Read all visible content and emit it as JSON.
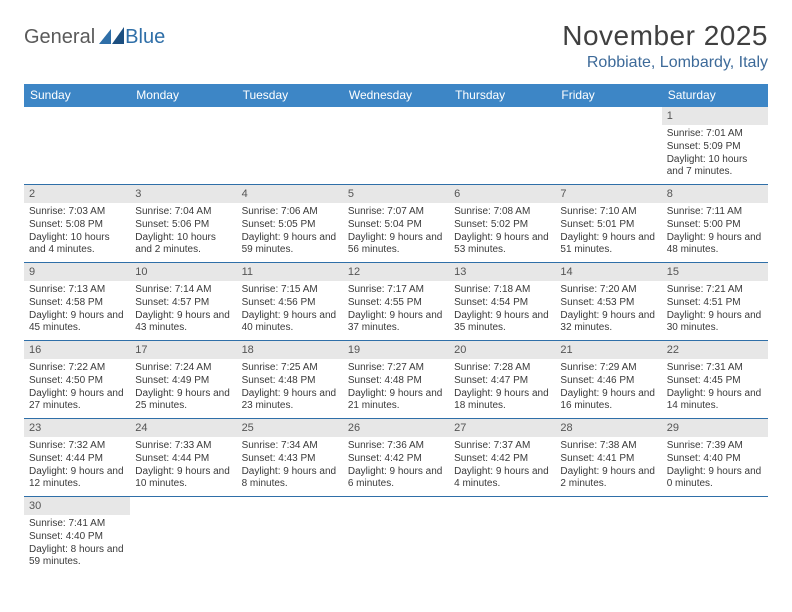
{
  "logo": {
    "part1": "General",
    "part2": "Blue"
  },
  "title": "November 2025",
  "location": "Robbiate, Lombardy, Italy",
  "colors": {
    "header_bg": "#3d86c6",
    "header_text": "#ffffff",
    "accent": "#2f6fa8",
    "daynum_bg": "#e7e7e7",
    "body_text": "#3a3a3a",
    "title_text": "#404040",
    "location_text": "#3d6a99"
  },
  "day_headers": [
    "Sunday",
    "Monday",
    "Tuesday",
    "Wednesday",
    "Thursday",
    "Friday",
    "Saturday"
  ],
  "weeks": [
    [
      {
        "empty": true
      },
      {
        "empty": true
      },
      {
        "empty": true
      },
      {
        "empty": true
      },
      {
        "empty": true
      },
      {
        "empty": true
      },
      {
        "day": "1",
        "sunrise": "7:01 AM",
        "sunset": "5:09 PM",
        "daylight": "10 hours and 7 minutes."
      }
    ],
    [
      {
        "day": "2",
        "sunrise": "7:03 AM",
        "sunset": "5:08 PM",
        "daylight": "10 hours and 4 minutes."
      },
      {
        "day": "3",
        "sunrise": "7:04 AM",
        "sunset": "5:06 PM",
        "daylight": "10 hours and 2 minutes."
      },
      {
        "day": "4",
        "sunrise": "7:06 AM",
        "sunset": "5:05 PM",
        "daylight": "9 hours and 59 minutes."
      },
      {
        "day": "5",
        "sunrise": "7:07 AM",
        "sunset": "5:04 PM",
        "daylight": "9 hours and 56 minutes."
      },
      {
        "day": "6",
        "sunrise": "7:08 AM",
        "sunset": "5:02 PM",
        "daylight": "9 hours and 53 minutes."
      },
      {
        "day": "7",
        "sunrise": "7:10 AM",
        "sunset": "5:01 PM",
        "daylight": "9 hours and 51 minutes."
      },
      {
        "day": "8",
        "sunrise": "7:11 AM",
        "sunset": "5:00 PM",
        "daylight": "9 hours and 48 minutes."
      }
    ],
    [
      {
        "day": "9",
        "sunrise": "7:13 AM",
        "sunset": "4:58 PM",
        "daylight": "9 hours and 45 minutes."
      },
      {
        "day": "10",
        "sunrise": "7:14 AM",
        "sunset": "4:57 PM",
        "daylight": "9 hours and 43 minutes."
      },
      {
        "day": "11",
        "sunrise": "7:15 AM",
        "sunset": "4:56 PM",
        "daylight": "9 hours and 40 minutes."
      },
      {
        "day": "12",
        "sunrise": "7:17 AM",
        "sunset": "4:55 PM",
        "daylight": "9 hours and 37 minutes."
      },
      {
        "day": "13",
        "sunrise": "7:18 AM",
        "sunset": "4:54 PM",
        "daylight": "9 hours and 35 minutes."
      },
      {
        "day": "14",
        "sunrise": "7:20 AM",
        "sunset": "4:53 PM",
        "daylight": "9 hours and 32 minutes."
      },
      {
        "day": "15",
        "sunrise": "7:21 AM",
        "sunset": "4:51 PM",
        "daylight": "9 hours and 30 minutes."
      }
    ],
    [
      {
        "day": "16",
        "sunrise": "7:22 AM",
        "sunset": "4:50 PM",
        "daylight": "9 hours and 27 minutes."
      },
      {
        "day": "17",
        "sunrise": "7:24 AM",
        "sunset": "4:49 PM",
        "daylight": "9 hours and 25 minutes."
      },
      {
        "day": "18",
        "sunrise": "7:25 AM",
        "sunset": "4:48 PM",
        "daylight": "9 hours and 23 minutes."
      },
      {
        "day": "19",
        "sunrise": "7:27 AM",
        "sunset": "4:48 PM",
        "daylight": "9 hours and 21 minutes."
      },
      {
        "day": "20",
        "sunrise": "7:28 AM",
        "sunset": "4:47 PM",
        "daylight": "9 hours and 18 minutes."
      },
      {
        "day": "21",
        "sunrise": "7:29 AM",
        "sunset": "4:46 PM",
        "daylight": "9 hours and 16 minutes."
      },
      {
        "day": "22",
        "sunrise": "7:31 AM",
        "sunset": "4:45 PM",
        "daylight": "9 hours and 14 minutes."
      }
    ],
    [
      {
        "day": "23",
        "sunrise": "7:32 AM",
        "sunset": "4:44 PM",
        "daylight": "9 hours and 12 minutes."
      },
      {
        "day": "24",
        "sunrise": "7:33 AM",
        "sunset": "4:44 PM",
        "daylight": "9 hours and 10 minutes."
      },
      {
        "day": "25",
        "sunrise": "7:34 AM",
        "sunset": "4:43 PM",
        "daylight": "9 hours and 8 minutes."
      },
      {
        "day": "26",
        "sunrise": "7:36 AM",
        "sunset": "4:42 PM",
        "daylight": "9 hours and 6 minutes."
      },
      {
        "day": "27",
        "sunrise": "7:37 AM",
        "sunset": "4:42 PM",
        "daylight": "9 hours and 4 minutes."
      },
      {
        "day": "28",
        "sunrise": "7:38 AM",
        "sunset": "4:41 PM",
        "daylight": "9 hours and 2 minutes."
      },
      {
        "day": "29",
        "sunrise": "7:39 AM",
        "sunset": "4:40 PM",
        "daylight": "9 hours and 0 minutes."
      }
    ],
    [
      {
        "day": "30",
        "sunrise": "7:41 AM",
        "sunset": "4:40 PM",
        "daylight": "8 hours and 59 minutes."
      },
      {
        "empty": true
      },
      {
        "empty": true
      },
      {
        "empty": true
      },
      {
        "empty": true
      },
      {
        "empty": true
      },
      {
        "empty": true
      }
    ]
  ],
  "labels": {
    "sunrise": "Sunrise:",
    "sunset": "Sunset:",
    "daylight": "Daylight:"
  }
}
